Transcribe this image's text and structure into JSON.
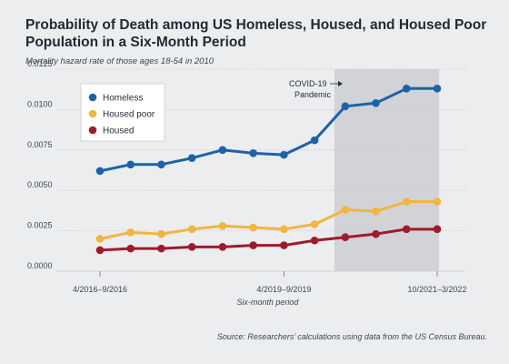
{
  "chart_data": {
    "type": "line",
    "title": "Probability of Death among US Homeless, Housed, and Housed Poor Population in a Six-Month Period",
    "subtitle": "Mortality hazard rate of those ages 18-54 in 2010",
    "xlabel": "Six-month period",
    "ylabel": "",
    "ylim": [
      0,
      0.0125
    ],
    "y_ticks": [
      "0.0000",
      "0.0025",
      "0.0050",
      "0.0075",
      "0.0100",
      "0.0125"
    ],
    "x_ticks": [
      {
        "index": 0,
        "label": "4/2016–9/2016"
      },
      {
        "index": 6,
        "label": "4/2019–9/2019"
      },
      {
        "index": 11,
        "label": "10/2021–3/2022"
      }
    ],
    "grid": true,
    "legend_position": "top-left",
    "shaded_region": {
      "from_index": 8,
      "to_index": 11,
      "label_lines": [
        "COVID-19",
        "Pandemic"
      ]
    },
    "x": [
      0,
      1,
      2,
      3,
      4,
      5,
      6,
      7,
      8,
      9,
      10,
      11
    ],
    "series": [
      {
        "name": "Homeless",
        "color": "#1d62a8",
        "values": [
          0.0062,
          0.0066,
          0.0066,
          0.007,
          0.0075,
          0.0073,
          0.0072,
          0.0081,
          0.0102,
          0.0104,
          0.0113,
          0.0113
        ]
      },
      {
        "name": "Housed poor",
        "color": "#f2b540",
        "values": [
          0.002,
          0.0024,
          0.0023,
          0.0026,
          0.0028,
          0.0027,
          0.0026,
          0.0029,
          0.0038,
          0.0037,
          0.0043,
          0.0043
        ]
      },
      {
        "name": "Housed",
        "color": "#9e1b2c",
        "values": [
          0.0013,
          0.0014,
          0.0014,
          0.0015,
          0.0015,
          0.0016,
          0.0016,
          0.0019,
          0.0021,
          0.0023,
          0.0026,
          0.0026
        ]
      }
    ]
  },
  "source": "Source: Researchers’ calculations using data from the US Census Bureau."
}
